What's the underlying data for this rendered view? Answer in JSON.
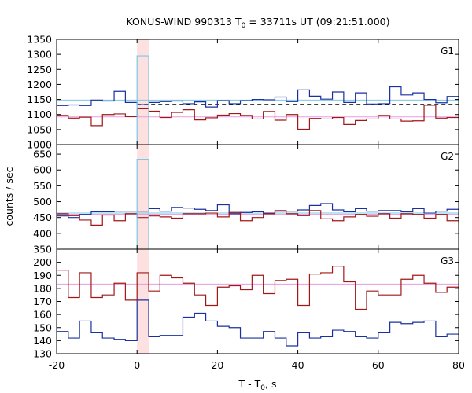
{
  "chart_data": {
    "type": "line",
    "title": "KONUS-WIND 990313 T",
    "title_sub": "0",
    "title_rest": " = 33711s UT (09:21:51.000)",
    "xlabel": "T - T",
    "xlabel_sub": "0",
    "xlabel_rest": ", s",
    "ylabel": "counts / sec",
    "xlim": [
      -20,
      80
    ],
    "x_ticks": [
      -20,
      0,
      20,
      40,
      60,
      80
    ],
    "highlight_band": [
      0,
      2.9
    ],
    "colors": {
      "dark_blue": "#1a30a0",
      "dark_red": "#a01818",
      "light_blue": "#7cc8e8",
      "pink": "#e89ae0",
      "band": "#fde0e0",
      "dashed": "#000000"
    },
    "panels": [
      {
        "label": "G1",
        "ylim": [
          1000,
          1350
        ],
        "y_ticks": [
          1000,
          1050,
          1100,
          1150,
          1200,
          1250,
          1300,
          1350
        ],
        "bg_lines": [
          {
            "name": "",
            "color_key": "light_blue",
            "y": 1148,
            "x_start": -20,
            "x_end": 80
          },
          {
            "name": "",
            "color_key": "pink",
            "y": 1092,
            "x_start": -20,
            "x_end": 80
          }
        ],
        "dashed_line": {
          "x": [
            0,
            80
          ],
          "y": [
            1134,
            1134
          ]
        },
        "series": [
          {
            "color_key": "dark_blue",
            "edges": [
              -20,
              -17.1,
              -14.3,
              -11.4,
              -8.6,
              -5.7,
              -2.9,
              0,
              2.9,
              5.7,
              8.6,
              11.4,
              14.3,
              17.1,
              20,
              22.9,
              25.7,
              28.6,
              31.4,
              34.3,
              37.1,
              40,
              42.9,
              45.7,
              48.6,
              51.4,
              54.3,
              57.1,
              60,
              62.9,
              65.7,
              68.6,
              71.4,
              74.3,
              77.1,
              80
            ],
            "values": [
              1130,
              1132,
              1130,
              1148,
              1145,
              1177,
              1140,
              1133,
              1140,
              1143,
              1145,
              1136,
              1142,
              1125,
              1146,
              1136,
              1146,
              1150,
              1149,
              1158,
              1143,
              1182,
              1161,
              1151,
              1175,
              1140,
              1172,
              1135,
              1136,
              1192,
              1165,
              1172,
              1150,
              1139,
              1160
            ]
          },
          {
            "color_key": "dark_red",
            "edges": [
              -20,
              -17.1,
              -14.3,
              -11.4,
              -8.6,
              -5.7,
              -2.9,
              0,
              2.9,
              5.7,
              8.6,
              11.4,
              14.3,
              17.1,
              20,
              22.9,
              25.7,
              28.6,
              31.4,
              34.3,
              37.1,
              40,
              42.9,
              45.7,
              48.6,
              51.4,
              54.3,
              57.1,
              60,
              62.9,
              65.7,
              68.6,
              71.4,
              74.3,
              77.1,
              80
            ],
            "values": [
              1097,
              1088,
              1091,
              1063,
              1100,
              1102,
              1093,
              1119,
              1111,
              1090,
              1107,
              1116,
              1082,
              1089,
              1098,
              1103,
              1097,
              1085,
              1110,
              1081,
              1100,
              1051,
              1087,
              1085,
              1090,
              1067,
              1080,
              1085,
              1097,
              1085,
              1078,
              1079,
              1131,
              1088,
              1090
            ]
          },
          {
            "color_key": "light_blue",
            "edges": [
              0,
              2.9
            ],
            "values": [
              1295
            ]
          }
        ]
      },
      {
        "label": "G2",
        "ylim": [
          350,
          680
        ],
        "y_ticks": [
          350,
          400,
          450,
          500,
          550,
          600,
          650
        ],
        "bg_lines": [
          {
            "name": "",
            "color_key": "light_blue",
            "y": 464,
            "x_start": -20,
            "x_end": 80
          },
          {
            "name": "",
            "color_key": "pink",
            "y": 460,
            "x_start": -20,
            "x_end": 80
          }
        ],
        "series": [
          {
            "color_key": "dark_blue",
            "edges": [
              -20,
              -17.1,
              -14.3,
              -11.4,
              -8.6,
              -5.7,
              -2.9,
              0,
              2.9,
              5.7,
              8.6,
              11.4,
              14.3,
              17.1,
              20,
              22.9,
              25.7,
              28.6,
              31.4,
              34.3,
              37.1,
              40,
              42.9,
              45.7,
              48.6,
              51.4,
              54.3,
              57.1,
              60,
              62.9,
              65.7,
              68.6,
              71.4,
              74.3,
              77.1,
              80
            ],
            "values": [
              455,
              450,
              460,
              468,
              468,
              470,
              470,
              470,
              478,
              470,
              482,
              480,
              476,
              472,
              490,
              462,
              466,
              468,
              464,
              470,
              470,
              474,
              488,
              494,
              474,
              468,
              478,
              470,
              472,
              472,
              468,
              478,
              464,
              470,
              476
            ]
          },
          {
            "color_key": "dark_red",
            "edges": [
              -20,
              -17.1,
              -14.3,
              -11.4,
              -8.6,
              -5.7,
              -2.9,
              0,
              2.9,
              5.7,
              8.6,
              11.4,
              14.3,
              17.1,
              20,
              22.9,
              25.7,
              28.6,
              31.4,
              34.3,
              37.1,
              40,
              42.9,
              45.7,
              48.6,
              51.4,
              54.3,
              57.1,
              60,
              62.9,
              65.7,
              68.6,
              71.4,
              74.3,
              77.1,
              80
            ],
            "values": [
              462,
              456,
              442,
              426,
              458,
              440,
              462,
              450,
              455,
              452,
              448,
              462,
              462,
              464,
              452,
              466,
              440,
              450,
              462,
              472,
              462,
              456,
              472,
              446,
              440,
              452,
              460,
              454,
              462,
              448,
              462,
              460,
              448,
              460,
              440
            ]
          },
          {
            "color_key": "light_blue",
            "edges": [
              0,
              2.9
            ],
            "values": [
              634
            ]
          }
        ]
      },
      {
        "label": "G3",
        "ylim": [
          130,
          210
        ],
        "y_ticks": [
          130,
          140,
          150,
          160,
          170,
          180,
          190,
          200
        ],
        "bg_lines": [
          {
            "name": "",
            "color_key": "light_blue",
            "y": 143.5,
            "x_start": -20,
            "x_end": 80
          },
          {
            "name": "",
            "color_key": "pink",
            "y": 183.3,
            "x_start": -20,
            "x_end": 80
          }
        ],
        "series": [
          {
            "color_key": "dark_blue",
            "edges": [
              -20,
              -17.1,
              -14.3,
              -11.4,
              -8.6,
              -5.7,
              -2.9,
              0,
              2.9,
              5.7,
              8.6,
              11.4,
              14.3,
              17.1,
              20,
              22.9,
              25.7,
              28.6,
              31.4,
              34.3,
              37.1,
              40,
              42.9,
              45.7,
              48.6,
              51.4,
              54.3,
              57.1,
              60,
              62.9,
              65.7,
              68.6,
              71.4,
              74.3,
              77.1,
              80
            ],
            "values": [
              147,
              142,
              155,
              146,
              142,
              141,
              140,
              171,
              143,
              144,
              144,
              158,
              161,
              155,
              151,
              150,
              142,
              142,
              147,
              142,
              136,
              146,
              142,
              143,
              148,
              147,
              143,
              142,
              146,
              154,
              153,
              154,
              155,
              143,
              145
            ]
          },
          {
            "color_key": "dark_red",
            "edges": [
              -20,
              -17.1,
              -14.3,
              -11.4,
              -8.6,
              -5.7,
              -2.9,
              0,
              2.9,
              5.7,
              8.6,
              11.4,
              14.3,
              17.1,
              20,
              22.9,
              25.7,
              28.6,
              31.4,
              34.3,
              37.1,
              40,
              42.9,
              45.7,
              48.6,
              51.4,
              54.3,
              57.1,
              60,
              62.9,
              65.7,
              68.6,
              71.4,
              74.3,
              77.1,
              80
            ],
            "values": [
              194,
              173,
              192,
              173,
              175,
              184,
              171,
              192,
              178,
              190,
              188,
              184,
              175,
              167,
              181,
              182,
              179,
              190,
              176,
              186,
              187,
              167,
              191,
              192,
              197,
              185,
              164,
              178,
              175,
              175,
              187,
              190,
              184,
              177,
              181
            ]
          }
        ]
      }
    ]
  }
}
